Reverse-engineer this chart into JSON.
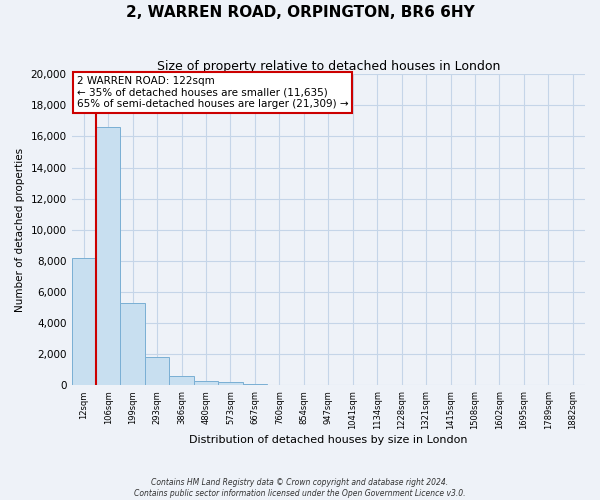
{
  "title": "2, WARREN ROAD, ORPINGTON, BR6 6HY",
  "subtitle": "Size of property relative to detached houses in London",
  "xlabel": "Distribution of detached houses by size in London",
  "ylabel": "Number of detached properties",
  "bar_labels": [
    "12sqm",
    "106sqm",
    "199sqm",
    "293sqm",
    "386sqm",
    "480sqm",
    "573sqm",
    "667sqm",
    "760sqm",
    "854sqm",
    "947sqm",
    "1041sqm",
    "1134sqm",
    "1228sqm",
    "1321sqm",
    "1415sqm",
    "1508sqm",
    "1602sqm",
    "1695sqm",
    "1789sqm",
    "1882sqm"
  ],
  "bar_values": [
    8200,
    16600,
    5300,
    1850,
    600,
    280,
    200,
    120,
    0,
    0,
    0,
    0,
    0,
    0,
    0,
    0,
    0,
    0,
    0,
    0,
    0
  ],
  "bar_color": "#c8dff0",
  "bar_edge_color": "#7aafd4",
  "vline_x_index": 1,
  "vline_color": "#cc0000",
  "annotation_title": "2 WARREN ROAD: 122sqm",
  "annotation_line1": "← 35% of detached houses are smaller (11,635)",
  "annotation_line2": "65% of semi-detached houses are larger (21,309) →",
  "annotation_box_color": "#ffffff",
  "annotation_box_edge": "#cc0000",
  "ylim": [
    0,
    20000
  ],
  "yticks": [
    0,
    2000,
    4000,
    6000,
    8000,
    10000,
    12000,
    14000,
    16000,
    18000,
    20000
  ],
  "footnote1": "Contains HM Land Registry data © Crown copyright and database right 2024.",
  "footnote2": "Contains public sector information licensed under the Open Government Licence v3.0.",
  "background_color": "#eef2f8",
  "plot_background_color": "#eef2f8",
  "grid_color": "#c5d5e8",
  "title_fontsize": 11,
  "subtitle_fontsize": 9
}
